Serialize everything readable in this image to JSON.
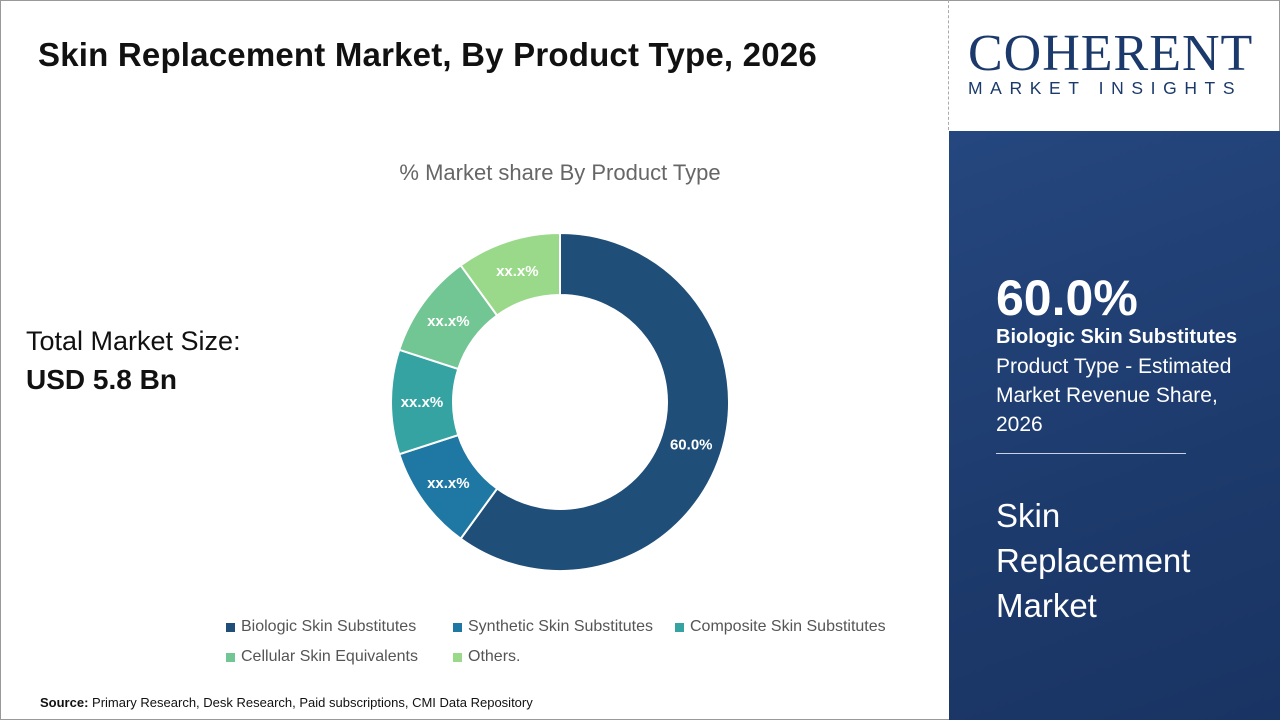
{
  "header": {
    "title": "Skin Replacement Market, By Product Type, 2026"
  },
  "total_market": {
    "label": "Total Market Size:",
    "value": "USD 5.8 Bn"
  },
  "logo": {
    "text_big": "COHERENT",
    "text_small": "MARKET INSIGHTS"
  },
  "side_panel": {
    "percent": "60.0%",
    "segment": "Biologic Skin Substitutes",
    "description": "Product Type - Estimated Market Revenue Share, 2026",
    "market_name": "Skin Replacement Market"
  },
  "source": {
    "label": "Source:",
    "text": "Primary Research, Desk Research, Paid subscriptions, CMI Data Repository"
  },
  "chart_data": {
    "type": "pie",
    "donut": true,
    "title": "% Market share By Product Type",
    "categories": [
      "Biologic Skin Substitutes",
      "Synthetic Skin Substitutes",
      "Composite Skin Substitutes",
      "Cellular Skin Equivalents",
      "Others."
    ],
    "values": [
      60.0,
      10,
      10,
      10,
      10
    ],
    "labels": [
      "60.0%",
      "xx.x%",
      "xx.x%",
      "xx.x%",
      "xx.x%"
    ],
    "colors": [
      "#1f4e79",
      "#1f78a3",
      "#36a3a3",
      "#72c693",
      "#9bd98a"
    ],
    "legend": "bottom"
  }
}
